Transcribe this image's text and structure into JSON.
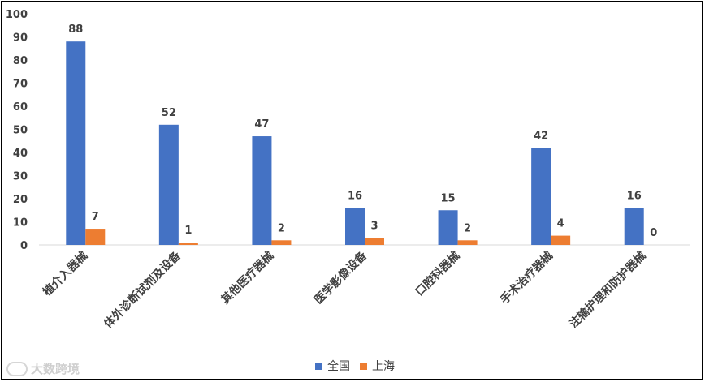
{
  "chart_data": {
    "type": "bar",
    "categories": [
      "植介入器械",
      "体外诊断试剂及设备",
      "其他医疗器械",
      "医学影像设备",
      "口腔科器械",
      "手术治疗器械",
      "注输护理和防护器械"
    ],
    "series": [
      {
        "name": "全国",
        "values": [
          88,
          52,
          47,
          16,
          15,
          42,
          16
        ],
        "color": "#4472C4"
      },
      {
        "name": "上海",
        "values": [
          7,
          1,
          2,
          3,
          2,
          4,
          0
        ],
        "color": "#ED7D31"
      }
    ],
    "ylim": [
      0,
      100
    ],
    "yticks": [
      0,
      10,
      20,
      30,
      40,
      50,
      60,
      70,
      80,
      90,
      100
    ],
    "grid": false,
    "legend_position": "bottom-center",
    "title": "",
    "xlabel": "",
    "ylabel": ""
  },
  "watermark": {
    "text": "大数跨境",
    "icon": "logo-icon"
  }
}
